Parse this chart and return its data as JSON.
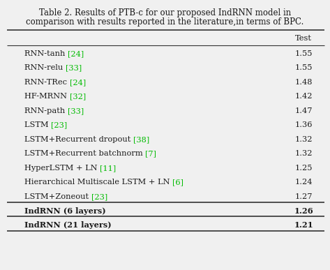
{
  "title_line1": "Table 2. Results of PTB-c for our proposed IndRNN model in",
  "title_line2": "comparison with results reported in the literature,in terms of BPC.",
  "col_header": "Test",
  "rows": [
    {
      "model_parts": [
        {
          "text": "RNN-tanh ",
          "color": "#1a1a1a"
        },
        {
          "text": "[24]",
          "color": "#00bb00"
        }
      ],
      "value": "1.55",
      "bold": false
    },
    {
      "model_parts": [
        {
          "text": "RNN-relu ",
          "color": "#1a1a1a"
        },
        {
          "text": "[33]",
          "color": "#00bb00"
        }
      ],
      "value": "1.55",
      "bold": false
    },
    {
      "model_parts": [
        {
          "text": "RNN-TRec ",
          "color": "#1a1a1a"
        },
        {
          "text": "[24]",
          "color": "#00bb00"
        }
      ],
      "value": "1.48",
      "bold": false
    },
    {
      "model_parts": [
        {
          "text": "HF-MRNN ",
          "color": "#1a1a1a"
        },
        {
          "text": "[32]",
          "color": "#00bb00"
        }
      ],
      "value": "1.42",
      "bold": false
    },
    {
      "model_parts": [
        {
          "text": "RNN-path ",
          "color": "#1a1a1a"
        },
        {
          "text": "[33]",
          "color": "#00bb00"
        }
      ],
      "value": "1.47",
      "bold": false
    },
    {
      "model_parts": [
        {
          "text": "LSTM ",
          "color": "#1a1a1a"
        },
        {
          "text": "[23]",
          "color": "#00bb00"
        }
      ],
      "value": "1.36",
      "bold": false
    },
    {
      "model_parts": [
        {
          "text": "LSTM+Recurrent dropout ",
          "color": "#1a1a1a"
        },
        {
          "text": "[38]",
          "color": "#00bb00"
        }
      ],
      "value": "1.32",
      "bold": false
    },
    {
      "model_parts": [
        {
          "text": "LSTM+Recurrent batchnorm ",
          "color": "#1a1a1a"
        },
        {
          "text": "[7]",
          "color": "#00bb00"
        }
      ],
      "value": "1.32",
      "bold": false
    },
    {
      "model_parts": [
        {
          "text": "HyperLSTM + LN ",
          "color": "#1a1a1a"
        },
        {
          "text": "[11]",
          "color": "#00bb00"
        }
      ],
      "value": "1.25",
      "bold": false
    },
    {
      "model_parts": [
        {
          "text": "Hierarchical Multiscale LSTM + LN ",
          "color": "#1a1a1a"
        },
        {
          "text": "[6]",
          "color": "#00bb00"
        }
      ],
      "value": "1.24",
      "bold": false
    },
    {
      "model_parts": [
        {
          "text": "LSTM+Zoneout ",
          "color": "#1a1a1a"
        },
        {
          "text": "[23]",
          "color": "#00bb00"
        }
      ],
      "value": "1.27",
      "bold": false
    },
    {
      "model_parts": [
        {
          "text": "IndRNN (6 layers)",
          "color": "#1a1a1a"
        }
      ],
      "value": "1.26",
      "bold": true
    },
    {
      "model_parts": [
        {
          "text": "IndRNN (21 layers)",
          "color": "#1a1a1a"
        }
      ],
      "value": "1.21",
      "bold": true
    }
  ],
  "background_color": "#f0f0f0",
  "font_size": 8.2,
  "title_font_size": 8.5
}
